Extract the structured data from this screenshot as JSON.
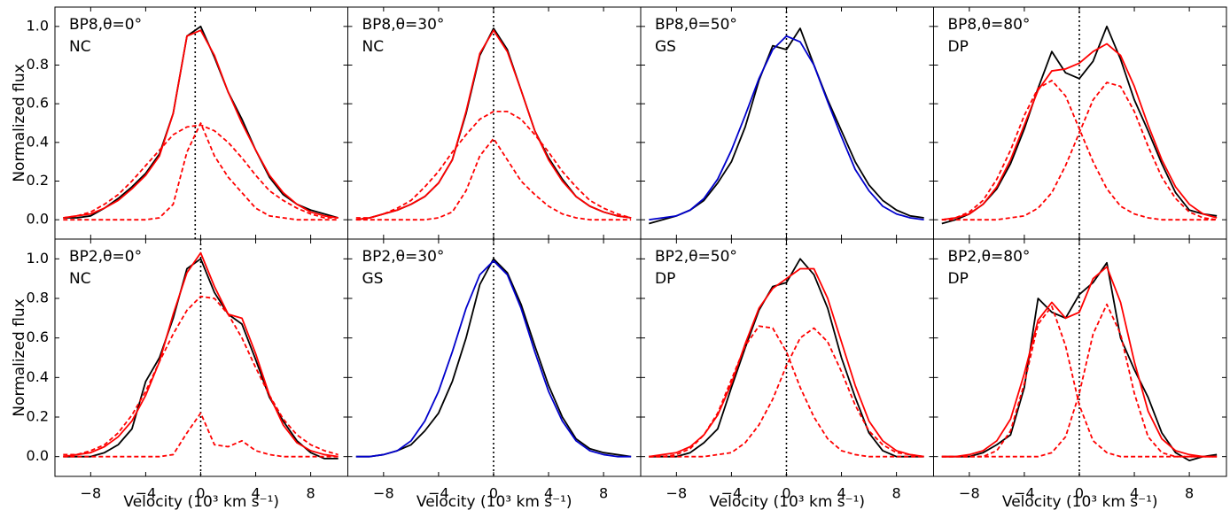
{
  "chart_data": [
    {
      "type": "line",
      "text1": "BP8,θ=0°",
      "text2": "NC",
      "vline": -0.4,
      "ylabel": "Normalized flux",
      "x": [
        -10,
        -9,
        -8,
        -7,
        -6,
        -5,
        -4,
        -3,
        -2,
        -1,
        0,
        1,
        2,
        3,
        4,
        5,
        6,
        7,
        8,
        9,
        10
      ],
      "xlim": [
        -10.6,
        10.7
      ],
      "ylim": [
        -0.1,
        1.1
      ],
      "xticks": [
        -8,
        -4,
        0,
        4,
        8
      ],
      "yticks": [
        {
          "value": 0,
          "label": "0.0"
        },
        0.2,
        0.4,
        0.6,
        0.8,
        {
          "value": 1,
          "label": "1.0"
        }
      ],
      "series": [
        {
          "color": "#000000",
          "values": [
            0.01,
            0.01,
            0.02,
            0.06,
            0.11,
            0.17,
            0.24,
            0.34,
            0.55,
            0.95,
            1.0,
            0.84,
            0.66,
            0.52,
            0.36,
            0.22,
            0.13,
            0.08,
            0.05,
            0.03,
            0.01
          ]
        },
        {
          "color": "#ff0000",
          "values": [
            0.01,
            0.02,
            0.03,
            0.06,
            0.1,
            0.16,
            0.23,
            0.33,
            0.55,
            0.95,
            0.98,
            0.85,
            0.66,
            0.5,
            0.36,
            0.23,
            0.14,
            0.08,
            0.04,
            0.02,
            0.01
          ]
        },
        {
          "color": "#ff0000",
          "dashed": true,
          "values": [
            0.01,
            0.02,
            0.04,
            0.08,
            0.13,
            0.2,
            0.28,
            0.36,
            0.44,
            0.48,
            0.49,
            0.46,
            0.4,
            0.32,
            0.23,
            0.15,
            0.1,
            0.06,
            0.03,
            0.01,
            0.01
          ]
        },
        {
          "color": "#ff0000",
          "dashed": true,
          "values": [
            0,
            0,
            0,
            0,
            0,
            0,
            0,
            0.01,
            0.08,
            0.35,
            0.5,
            0.33,
            0.22,
            0.14,
            0.06,
            0.02,
            0.01,
            0,
            0,
            0,
            0
          ]
        }
      ]
    },
    {
      "type": "line",
      "text1": "BP8,θ=30°",
      "text2": "NC",
      "vline": 0,
      "x": [
        -10,
        -9,
        -8,
        -7,
        -6,
        -5,
        -4,
        -3,
        -2,
        -1,
        0,
        1,
        2,
        3,
        4,
        5,
        6,
        7,
        8,
        9,
        10
      ],
      "xlim": [
        -10.6,
        10.7
      ],
      "ylim": [
        -0.1,
        1.1
      ],
      "xticks": [
        -8,
        -4,
        0,
        4,
        8
      ],
      "yticks": [
        0,
        0.2,
        0.4,
        0.6,
        0.8,
        1
      ],
      "series": [
        {
          "color": "#000000",
          "values": [
            0.0,
            0.01,
            0.03,
            0.05,
            0.08,
            0.12,
            0.19,
            0.31,
            0.55,
            0.85,
            0.99,
            0.88,
            0.67,
            0.46,
            0.32,
            0.21,
            0.12,
            0.07,
            0.04,
            0.02,
            0.01
          ]
        },
        {
          "color": "#ff0000",
          "values": [
            0.0,
            0.01,
            0.03,
            0.05,
            0.08,
            0.12,
            0.19,
            0.31,
            0.56,
            0.86,
            0.98,
            0.87,
            0.67,
            0.46,
            0.31,
            0.2,
            0.12,
            0.07,
            0.04,
            0.02,
            0.01
          ]
        },
        {
          "color": "#ff0000",
          "dashed": true,
          "values": [
            0.01,
            0.01,
            0.03,
            0.06,
            0.1,
            0.17,
            0.25,
            0.35,
            0.44,
            0.52,
            0.56,
            0.56,
            0.52,
            0.44,
            0.35,
            0.25,
            0.17,
            0.1,
            0.06,
            0.03,
            0.01
          ]
        },
        {
          "color": "#ff0000",
          "dashed": true,
          "values": [
            0,
            0,
            0,
            0,
            0,
            0,
            0.01,
            0.04,
            0.15,
            0.33,
            0.42,
            0.31,
            0.2,
            0.13,
            0.07,
            0.03,
            0.01,
            0,
            0,
            0,
            0
          ]
        }
      ]
    },
    {
      "type": "line",
      "text1": "BP8,θ=50°",
      "text2": "GS",
      "vline": 0,
      "x": [
        -10,
        -9,
        -8,
        -7,
        -6,
        -5,
        -4,
        -3,
        -2,
        -1,
        0,
        1,
        2,
        3,
        4,
        5,
        6,
        7,
        8,
        9,
        10
      ],
      "xlim": [
        -10.6,
        10.7
      ],
      "ylim": [
        -0.1,
        1.1
      ],
      "xticks": [
        -8,
        -4,
        0,
        4,
        8
      ],
      "yticks": [
        0,
        0.2,
        0.4,
        0.6,
        0.8,
        1
      ],
      "series": [
        {
          "color": "#000000",
          "values": [
            -0.02,
            0.0,
            0.02,
            0.05,
            0.1,
            0.19,
            0.3,
            0.48,
            0.72,
            0.9,
            0.88,
            0.99,
            0.8,
            0.62,
            0.46,
            0.3,
            0.18,
            0.1,
            0.05,
            0.02,
            0.01
          ]
        },
        {
          "color": "#0000cc",
          "values": [
            0.0,
            0.01,
            0.02,
            0.05,
            0.11,
            0.21,
            0.36,
            0.54,
            0.73,
            0.88,
            0.95,
            0.92,
            0.8,
            0.61,
            0.43,
            0.26,
            0.15,
            0.07,
            0.03,
            0.01,
            0.0
          ]
        }
      ]
    },
    {
      "type": "line",
      "text1": "BP8,θ=80°",
      "text2": "DP",
      "vline": 0,
      "x": [
        -10,
        -9,
        -8,
        -7,
        -6,
        -5,
        -4,
        -3,
        -2,
        -1,
        0,
        1,
        2,
        3,
        4,
        5,
        6,
        7,
        8,
        9,
        10
      ],
      "xlim": [
        -10.6,
        10.7
      ],
      "ylim": [
        -0.1,
        1.1
      ],
      "xticks": [
        -8,
        -4,
        0,
        4,
        8
      ],
      "yticks": [
        0,
        0.2,
        0.4,
        0.6,
        0.8,
        1
      ],
      "series": [
        {
          "color": "#000000",
          "values": [
            -0.02,
            0.0,
            0.03,
            0.08,
            0.16,
            0.29,
            0.47,
            0.68,
            0.87,
            0.76,
            0.73,
            0.82,
            1.0,
            0.83,
            0.62,
            0.46,
            0.29,
            0.14,
            0.05,
            0.03,
            0.02
          ]
        },
        {
          "color": "#ff0000",
          "values": [
            0.0,
            0.01,
            0.03,
            0.08,
            0.17,
            0.31,
            0.49,
            0.67,
            0.77,
            0.78,
            0.81,
            0.87,
            0.91,
            0.85,
            0.69,
            0.49,
            0.31,
            0.17,
            0.08,
            0.03,
            0.01
          ]
        },
        {
          "color": "#ff0000",
          "dashed": true,
          "values": [
            0,
            0.01,
            0.04,
            0.1,
            0.21,
            0.36,
            0.54,
            0.68,
            0.72,
            0.64,
            0.47,
            0.3,
            0.16,
            0.07,
            0.03,
            0.01,
            0,
            0,
            0,
            0,
            0
          ]
        },
        {
          "color": "#ff0000",
          "dashed": true,
          "values": [
            0,
            0,
            0,
            0,
            0,
            0.01,
            0.02,
            0.06,
            0.14,
            0.28,
            0.45,
            0.62,
            0.71,
            0.69,
            0.56,
            0.38,
            0.22,
            0.11,
            0.04,
            0.01,
            0
          ]
        }
      ]
    },
    {
      "type": "line",
      "text1": "BP2,θ=0°",
      "text2": "NC",
      "vline": 0,
      "ylabel": "Normalized flux",
      "xlabel": "Velocity (10³ km s⁻¹)",
      "x": [
        -10,
        -9,
        -8,
        -7,
        -6,
        -5,
        -4,
        -3,
        -2,
        -1,
        0,
        1,
        2,
        3,
        4,
        5,
        6,
        7,
        8,
        9,
        10
      ],
      "xlim": [
        -10.6,
        10.7
      ],
      "ylim": [
        -0.1,
        1.1
      ],
      "xticks": [
        {
          "value": -8,
          "label": "−8"
        },
        {
          "value": -4,
          "label": "−4"
        },
        0,
        4,
        8
      ],
      "yticks": [
        {
          "value": 0,
          "label": "0.0"
        },
        0.2,
        0.4,
        0.6,
        0.8,
        {
          "value": 1,
          "label": "1.0"
        }
      ],
      "series": [
        {
          "color": "#000000",
          "values": [
            0,
            0,
            0.0,
            0.02,
            0.06,
            0.14,
            0.38,
            0.5,
            0.7,
            0.95,
            1.0,
            0.83,
            0.72,
            0.67,
            0.49,
            0.3,
            0.18,
            0.08,
            0.02,
            -0.01,
            -0.01
          ]
        },
        {
          "color": "#ff0000",
          "values": [
            0,
            0.01,
            0.02,
            0.05,
            0.1,
            0.18,
            0.31,
            0.48,
            0.72,
            0.93,
            1.03,
            0.86,
            0.72,
            0.7,
            0.52,
            0.31,
            0.16,
            0.07,
            0.03,
            0.01,
            0.0
          ]
        },
        {
          "color": "#ff0000",
          "dashed": true,
          "values": [
            0.01,
            0.01,
            0.03,
            0.06,
            0.12,
            0.21,
            0.33,
            0.48,
            0.62,
            0.74,
            0.81,
            0.8,
            0.72,
            0.6,
            0.45,
            0.31,
            0.19,
            0.11,
            0.06,
            0.03,
            0.01
          ]
        },
        {
          "color": "#ff0000",
          "dashed": true,
          "values": [
            0,
            0,
            0,
            0,
            0,
            0,
            0,
            0,
            0.01,
            0.12,
            0.22,
            0.06,
            0.05,
            0.08,
            0.03,
            0.01,
            0,
            0,
            0,
            0,
            0
          ]
        }
      ]
    },
    {
      "type": "line",
      "text1": "BP2,θ=30°",
      "text2": "GS",
      "vline": 0,
      "xlabel": "Velocity (10³ km s⁻¹)",
      "x": [
        -10,
        -9,
        -8,
        -7,
        -6,
        -5,
        -4,
        -3,
        -2,
        -1,
        0,
        1,
        2,
        3,
        4,
        5,
        6,
        7,
        8,
        9,
        10
      ],
      "xlim": [
        -10.6,
        10.7
      ],
      "ylim": [
        -0.1,
        1.1
      ],
      "xticks": [
        {
          "value": -8,
          "label": "−8"
        },
        {
          "value": -4,
          "label": "−4"
        },
        0,
        4,
        8
      ],
      "yticks": [
        0,
        0.2,
        0.4,
        0.6,
        0.8,
        1
      ],
      "series": [
        {
          "color": "#000000",
          "values": [
            0,
            0,
            0.01,
            0.03,
            0.06,
            0.13,
            0.22,
            0.38,
            0.6,
            0.87,
            1.0,
            0.93,
            0.77,
            0.56,
            0.36,
            0.2,
            0.09,
            0.04,
            0.02,
            0.01,
            0.0
          ]
        },
        {
          "color": "#0000cc",
          "values": [
            0,
            0,
            0.01,
            0.03,
            0.08,
            0.18,
            0.33,
            0.53,
            0.75,
            0.92,
            0.99,
            0.92,
            0.75,
            0.53,
            0.33,
            0.18,
            0.08,
            0.03,
            0.01,
            0,
            0
          ]
        }
      ]
    },
    {
      "type": "line",
      "text1": "BP2,θ=50°",
      "text2": "DP",
      "vline": 0,
      "xlabel": "Velocity (10³ km s⁻¹)",
      "x": [
        -10,
        -9,
        -8,
        -7,
        -6,
        -5,
        -4,
        -3,
        -2,
        -1,
        0,
        1,
        2,
        3,
        4,
        5,
        6,
        7,
        8,
        9,
        10
      ],
      "xlim": [
        -10.6,
        10.7
      ],
      "ylim": [
        -0.1,
        1.1
      ],
      "xticks": [
        {
          "value": -8,
          "label": "−8"
        },
        {
          "value": -4,
          "label": "−4"
        },
        0,
        4,
        8
      ],
      "yticks": [
        0,
        0.2,
        0.4,
        0.6,
        0.8,
        1
      ],
      "series": [
        {
          "color": "#000000",
          "values": [
            0,
            0,
            0,
            0.02,
            0.07,
            0.14,
            0.35,
            0.55,
            0.74,
            0.86,
            0.88,
            1.0,
            0.92,
            0.75,
            0.5,
            0.3,
            0.12,
            0.03,
            0.0,
            0.0,
            0.0
          ]
        },
        {
          "color": "#ff0000",
          "values": [
            0,
            0.01,
            0.02,
            0.05,
            0.11,
            0.21,
            0.37,
            0.57,
            0.75,
            0.85,
            0.9,
            0.95,
            0.95,
            0.8,
            0.58,
            0.36,
            0.18,
            0.08,
            0.03,
            0.01,
            0.0
          ]
        },
        {
          "color": "#ff0000",
          "dashed": true,
          "values": [
            0,
            0,
            0.01,
            0.04,
            0.11,
            0.22,
            0.39,
            0.56,
            0.66,
            0.65,
            0.53,
            0.35,
            0.2,
            0.09,
            0.03,
            0.01,
            0,
            0,
            0,
            0,
            0
          ]
        },
        {
          "color": "#ff0000",
          "dashed": true,
          "values": [
            0,
            0,
            0,
            0,
            0,
            0.01,
            0.02,
            0.07,
            0.16,
            0.29,
            0.46,
            0.6,
            0.65,
            0.58,
            0.43,
            0.26,
            0.13,
            0.06,
            0.02,
            0.01,
            0
          ]
        }
      ]
    },
    {
      "type": "line",
      "text1": "BP2,θ=80°",
      "text2": "DP",
      "vline": 0,
      "xlabel": "Velocity (10³ km s⁻¹)",
      "x": [
        -10,
        -9,
        -8,
        -7,
        -6,
        -5,
        -4,
        -3,
        -2,
        -1,
        0,
        1,
        2,
        3,
        4,
        5,
        6,
        7,
        8,
        9,
        10
      ],
      "xlim": [
        -10.6,
        10.7
      ],
      "ylim": [
        -0.1,
        1.1
      ],
      "xticks": [
        {
          "value": -8,
          "label": "−8"
        },
        {
          "value": -4,
          "label": "−4"
        },
        0,
        4,
        8
      ],
      "yticks": [
        0,
        0.2,
        0.4,
        0.6,
        0.8,
        1
      ],
      "series": [
        {
          "color": "#000000",
          "values": [
            0,
            0,
            0.0,
            0.02,
            0.06,
            0.11,
            0.35,
            0.8,
            0.73,
            0.7,
            0.82,
            0.88,
            0.98,
            0.6,
            0.44,
            0.3,
            0.12,
            0.02,
            -0.02,
            0.0,
            0.01
          ]
        },
        {
          "color": "#ff0000",
          "values": [
            0,
            0,
            0.01,
            0.03,
            0.08,
            0.19,
            0.42,
            0.69,
            0.78,
            0.7,
            0.73,
            0.9,
            0.96,
            0.78,
            0.48,
            0.23,
            0.09,
            0.03,
            0.01,
            0,
            0
          ]
        },
        {
          "color": "#ff0000",
          "dashed": true,
          "values": [
            0,
            0,
            0,
            0,
            0.03,
            0.13,
            0.37,
            0.67,
            0.76,
            0.56,
            0.26,
            0.08,
            0.02,
            0,
            0,
            0,
            0,
            0,
            0,
            0,
            0
          ]
        },
        {
          "color": "#ff0000",
          "dashed": true,
          "values": [
            0,
            0,
            0,
            0,
            0,
            0,
            0,
            0,
            0.02,
            0.1,
            0.32,
            0.62,
            0.77,
            0.62,
            0.32,
            0.1,
            0.02,
            0,
            0,
            0,
            0
          ]
        }
      ]
    }
  ]
}
